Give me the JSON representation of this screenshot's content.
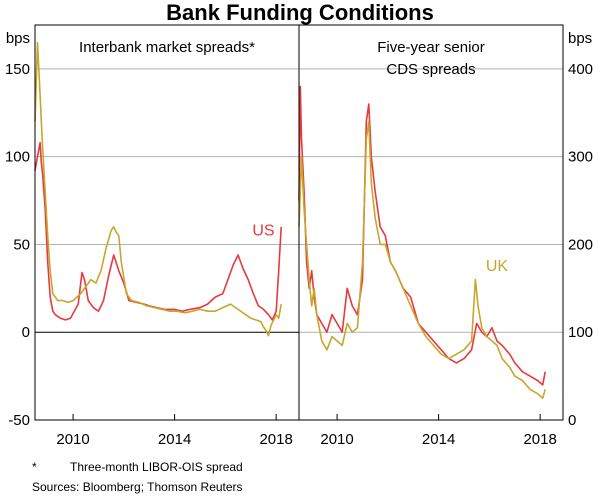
{
  "chart_data": {
    "type": "line",
    "title": "Bank Funding Conditions",
    "x_tick_labels": [
      "2010",
      "2014",
      "2018"
    ],
    "x_ticks": [
      2010,
      2014,
      2018
    ],
    "xlim": [
      2008.5,
      2018.9
    ],
    "colors": {
      "US": "#e8393f",
      "UK": "#c8a62c"
    },
    "panels": [
      {
        "title_lines": [
          "Interbank market spreads*"
        ],
        "ylabel": "bps",
        "axis_side": "left",
        "ylim": [
          -50,
          175
        ],
        "y_ticks": [
          -50,
          0,
          50,
          100,
          150
        ],
        "y_tick_labels": [
          "-50",
          "0",
          "50",
          "100",
          "150"
        ],
        "series": [
          {
            "name": "US",
            "label_value": [
              2017.5,
              55
            ],
            "x": [
              2008.5,
              2008.6,
              2008.7,
              2008.75,
              2008.8,
              2008.9,
              2009.0,
              2009.1,
              2009.2,
              2009.3,
              2009.5,
              2009.7,
              2009.9,
              2010.2,
              2010.35,
              2010.45,
              2010.6,
              2010.8,
              2011.0,
              2011.2,
              2011.4,
              2011.6,
              2011.8,
              2012.0,
              2012.2,
              2012.5,
              2012.8,
              2013.0,
              2013.3,
              2013.6,
              2014.0,
              2014.3,
              2014.6,
              2015.0,
              2015.3,
              2015.6,
              2015.9,
              2016.1,
              2016.3,
              2016.5,
              2016.7,
              2016.9,
              2017.1,
              2017.3,
              2017.5,
              2017.7,
              2017.85,
              2018.0,
              2018.1,
              2018.2
            ],
            "y": [
              92,
              100,
              108,
              97,
              90,
              70,
              40,
              20,
              12,
              10,
              8,
              7,
              8,
              16,
              34,
              30,
              18,
              14,
              12,
              18,
              32,
              44,
              35,
              28,
              18,
              17,
              16,
              15,
              14,
              13,
              13,
              12,
              13,
              14,
              16,
              20,
              22,
              30,
              38,
              44,
              36,
              30,
              22,
              15,
              13,
              10,
              7,
              12,
              35,
              60
            ]
          },
          {
            "name": "UK",
            "label_value": null,
            "x": [
              2008.5,
              2008.6,
              2008.7,
              2008.8,
              2008.9,
              2009.0,
              2009.1,
              2009.2,
              2009.4,
              2009.6,
              2009.8,
              2010.0,
              2010.3,
              2010.5,
              2010.7,
              2010.9,
              2011.1,
              2011.3,
              2011.5,
              2011.6,
              2011.7,
              2011.8,
              2011.9,
              2012.1,
              2012.3,
              2012.6,
              2012.9,
              2013.2,
              2013.5,
              2013.8,
              2014.1,
              2014.4,
              2014.7,
              2015.0,
              2015.3,
              2015.6,
              2015.9,
              2016.2,
              2016.5,
              2016.8,
              2017.0,
              2017.2,
              2017.4,
              2017.5,
              2017.6,
              2017.7,
              2017.8,
              2018.0,
              2018.1,
              2018.2
            ],
            "y": [
              120,
              165,
              135,
              105,
              80,
              55,
              35,
              22,
              18,
              18,
              17,
              18,
              22,
              26,
              30,
              28,
              35,
              48,
              58,
              60,
              57,
              55,
              40,
              22,
              18,
              17,
              15,
              14,
              13,
              12,
              12,
              11,
              12,
              13,
              12,
              12,
              14,
              16,
              13,
              10,
              8,
              7,
              6,
              3,
              1,
              -2,
              4,
              10,
              8,
              16
            ]
          }
        ]
      },
      {
        "title_lines": [
          "Five-year senior",
          "CDS spreads"
        ],
        "ylabel": "bps",
        "axis_side": "right",
        "ylim": [
          0,
          450
        ],
        "y_ticks": [
          0,
          100,
          200,
          300,
          400
        ],
        "y_tick_labels": [
          "0",
          "100",
          "200",
          "300",
          "400"
        ],
        "series": [
          {
            "name": "US",
            "label_value": null,
            "x": [
              2008.5,
              2008.55,
              2008.6,
              2008.7,
              2008.8,
              2008.9,
              2009.0,
              2009.1,
              2009.2,
              2009.4,
              2009.6,
              2009.8,
              2010.0,
              2010.2,
              2010.4,
              2010.6,
              2010.8,
              2011.0,
              2011.15,
              2011.25,
              2011.35,
              2011.5,
              2011.7,
              2011.9,
              2012.1,
              2012.3,
              2012.6,
              2012.9,
              2013.2,
              2013.5,
              2013.8,
              2014.1,
              2014.4,
              2014.7,
              2015.0,
              2015.3,
              2015.5,
              2015.7,
              2015.9,
              2016.1,
              2016.3,
              2016.5,
              2016.8,
              2017.0,
              2017.3,
              2017.6,
              2017.9,
              2018.1,
              2018.2
            ],
            "y": [
              250,
              380,
              320,
              260,
              180,
              150,
              170,
              140,
              120,
              110,
              100,
              120,
              110,
              100,
              150,
              130,
              120,
              160,
              340,
              360,
              300,
              260,
              220,
              210,
              180,
              170,
              150,
              140,
              110,
              100,
              90,
              80,
              70,
              65,
              70,
              80,
              110,
              100,
              95,
              105,
              90,
              85,
              75,
              65,
              55,
              50,
              45,
              40,
              55
            ]
          },
          {
            "name": "UK",
            "label_value": [
              2016.3,
              170
            ],
            "x": [
              2008.5,
              2008.6,
              2008.7,
              2008.8,
              2008.9,
              2009.0,
              2009.1,
              2009.2,
              2009.4,
              2009.6,
              2009.8,
              2010.0,
              2010.2,
              2010.4,
              2010.6,
              2010.8,
              2011.0,
              2011.15,
              2011.25,
              2011.35,
              2011.5,
              2011.7,
              2011.9,
              2012.1,
              2012.3,
              2012.6,
              2012.9,
              2013.2,
              2013.5,
              2013.8,
              2014.1,
              2014.4,
              2014.7,
              2015.0,
              2015.3,
              2015.45,
              2015.55,
              2015.7,
              2015.9,
              2016.1,
              2016.3,
              2016.5,
              2016.8,
              2017.0,
              2017.3,
              2017.6,
              2017.9,
              2018.1,
              2018.2
            ],
            "y": [
              220,
              300,
              240,
              200,
              160,
              130,
              150,
              120,
              90,
              80,
              95,
              90,
              85,
              110,
              100,
              105,
              180,
              320,
              340,
              270,
              230,
              200,
              200,
              180,
              170,
              150,
              130,
              110,
              95,
              85,
              75,
              70,
              75,
              80,
              90,
              160,
              130,
              105,
              95,
              90,
              85,
              70,
              60,
              50,
              45,
              35,
              30,
              25,
              35
            ]
          }
        ]
      }
    ]
  },
  "footnote": {
    "marker": "*",
    "text": "Three-month LIBOR-OIS spread"
  },
  "sources": "Sources: Bloomberg; Thomson Reuters"
}
